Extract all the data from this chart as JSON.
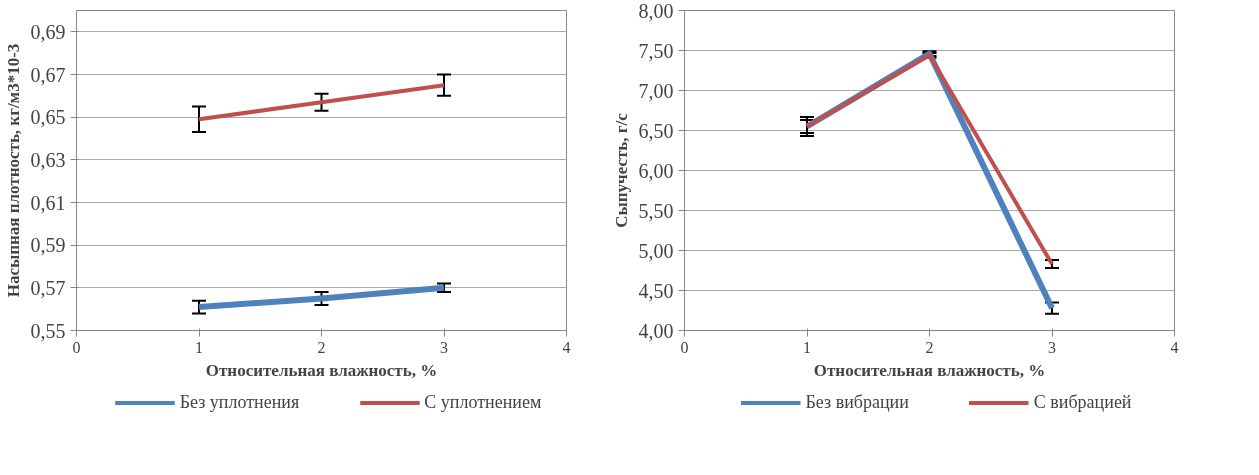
{
  "chart_data": [
    {
      "type": "line",
      "xlabel": "Относительная влажность, %",
      "ylabel": "Насыпная плотность, кг/м3*10-3",
      "x": [
        1,
        2,
        3
      ],
      "series": [
        {
          "name": "Без уплотнения",
          "color": "#4f81bd",
          "values": [
            0.561,
            0.565,
            0.57
          ],
          "errors": [
            0.003,
            0.003,
            0.002
          ]
        },
        {
          "name": "С уплотнением",
          "color": "#c0504d",
          "values": [
            0.649,
            0.657,
            0.665
          ],
          "errors": [
            0.006,
            0.004,
            0.005
          ]
        }
      ],
      "xlim": [
        0,
        4
      ],
      "xticks": [
        0,
        1,
        2,
        3,
        4
      ],
      "ylim": [
        0.55,
        0.7
      ],
      "yticks": [
        {
          "value": 0.55,
          "label": "0,55"
        },
        {
          "value": 0.57,
          "label": "0,57"
        },
        {
          "value": 0.59,
          "label": "0,59"
        },
        {
          "value": 0.61,
          "label": "0,61"
        },
        {
          "value": 0.63,
          "label": "0,63"
        },
        {
          "value": 0.65,
          "label": "0,65"
        },
        {
          "value": 0.67,
          "label": "0,67"
        },
        {
          "value": 0.69,
          "label": "0,69"
        }
      ],
      "grid": "y",
      "legend": "bottom",
      "marker": "none",
      "line_style": "solid"
    },
    {
      "type": "line",
      "xlabel": "Относительная влажность, %",
      "ylabel": "Сыпучесть, г/с",
      "x": [
        1,
        2,
        3
      ],
      "series": [
        {
          "name": "Без вибрации",
          "color": "#4f81bd",
          "values": [
            6.55,
            7.46,
            4.28
          ],
          "errors": [
            0.12,
            0.03,
            0.07
          ]
        },
        {
          "name": "С вибрацией",
          "color": "#c0504d",
          "values": [
            6.55,
            7.44,
            4.83
          ],
          "errors": [
            0.08,
            0.03,
            0.05
          ]
        }
      ],
      "xlim": [
        0,
        4
      ],
      "xticks": [
        0,
        1,
        2,
        3,
        4
      ],
      "ylim": [
        4.0,
        8.0
      ],
      "yticks": [
        {
          "value": 4.0,
          "label": "4,00"
        },
        {
          "value": 4.5,
          "label": "4,50"
        },
        {
          "value": 5.0,
          "label": "5,00"
        },
        {
          "value": 5.5,
          "label": "5,50"
        },
        {
          "value": 6.0,
          "label": "6,00"
        },
        {
          "value": 6.5,
          "label": "6,50"
        },
        {
          "value": 7.0,
          "label": "7,00"
        },
        {
          "value": 7.5,
          "label": "7,50"
        },
        {
          "value": 8.0,
          "label": "8,00"
        }
      ],
      "grid": "y",
      "legend": "bottom",
      "marker": "none",
      "line_style": "solid"
    }
  ]
}
